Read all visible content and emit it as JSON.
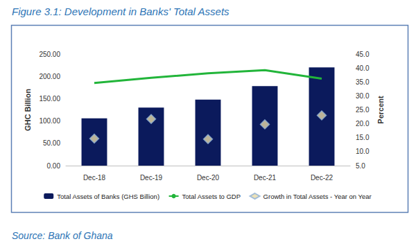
{
  "chart_data": {
    "type": "bar",
    "title": "Figure 3.1: Development in Banks' Total Assets",
    "source": "Source: Bank of Ghana",
    "ylabel": "GHC Billion",
    "y2label": "Percent",
    "categories": [
      "Dec-18",
      "Dec-19",
      "Dec-20",
      "Dec-21",
      "Dec-22"
    ],
    "series": [
      {
        "name": "Total Assets of Banks (GHS Billion)",
        "type": "bar",
        "color": "#0b1a5c",
        "values": [
          106,
          130,
          148,
          178,
          220
        ]
      },
      {
        "name": "Total Assets to GDP",
        "type": "line",
        "axis": "y2",
        "color": "#22b53a",
        "values": [
          34.6,
          36.5,
          38.1,
          39.2,
          36.2
        ]
      },
      {
        "name": "Growth in Total Assets - Year on Year",
        "type": "scatter",
        "axis": "y2",
        "marker": "diamond",
        "color": "#e8dba8",
        "values": [
          14.7,
          21.7,
          14.5,
          19.8,
          23.0
        ]
      }
    ],
    "ylim": [
      0,
      250
    ],
    "yticks": [
      {
        "value": 0,
        "label": "0.00"
      },
      {
        "value": 50,
        "label": "50.00"
      },
      {
        "value": 100,
        "label": "100.00"
      },
      {
        "value": 150,
        "label": "150.00"
      },
      {
        "value": 200,
        "label": "200.00"
      },
      {
        "value": 250,
        "label": "250.00"
      }
    ],
    "y2lim": [
      5,
      45
    ],
    "y2ticks": [
      {
        "value": 5,
        "label": "5.0"
      },
      {
        "value": 10,
        "label": "10.0"
      },
      {
        "value": 15,
        "label": "15.0"
      },
      {
        "value": 20,
        "label": "20.0"
      },
      {
        "value": 25,
        "label": "25.0"
      },
      {
        "value": 30,
        "label": "30.0"
      },
      {
        "value": 35,
        "label": "35.0"
      },
      {
        "value": 40,
        "label": "40.0"
      },
      {
        "value": 45,
        "label": "45.0"
      }
    ],
    "grid": false,
    "legend": "bottom"
  }
}
